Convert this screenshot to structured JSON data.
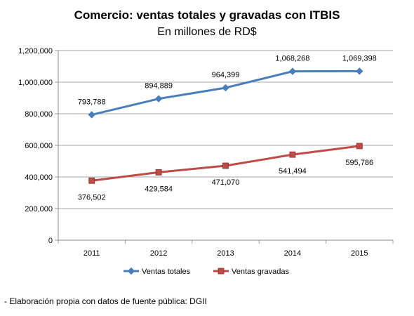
{
  "chart_data": {
    "type": "line",
    "title": "Comercio: ventas totales y gravadas con ITBIS",
    "subtitle": "En millones de RD$",
    "x": [
      "2011",
      "2012",
      "2013",
      "2014",
      "2015"
    ],
    "ylim": [
      0,
      1200000
    ],
    "yticks": [
      "0",
      "200,000",
      "400,000",
      "600,000",
      "800,000",
      "1,000,000",
      "1,200,000"
    ],
    "ytick_values": [
      0,
      200000,
      400000,
      600000,
      800000,
      1000000,
      1200000
    ],
    "grid": true,
    "legend_position": "bottom",
    "series": [
      {
        "name": "Ventas totales",
        "color": "#4A7EBB",
        "marker": "diamond",
        "values": [
          793788,
          894889,
          964399,
          1068268,
          1069398
        ],
        "labels": [
          "793,788",
          "894,889",
          "964,399",
          "1,068,268",
          "1,069,398"
        ],
        "label_position": "above"
      },
      {
        "name": "Ventas gravadas",
        "color": "#BE4B48",
        "marker": "square",
        "values": [
          376502,
          429584,
          471070,
          541494,
          595786
        ],
        "labels": [
          "376,502",
          "429,584",
          "471,070",
          "541,494",
          "595,786"
        ],
        "label_position": "below"
      }
    ]
  },
  "footnote": "- Elaboración propia con datos de fuente pública: DGII"
}
